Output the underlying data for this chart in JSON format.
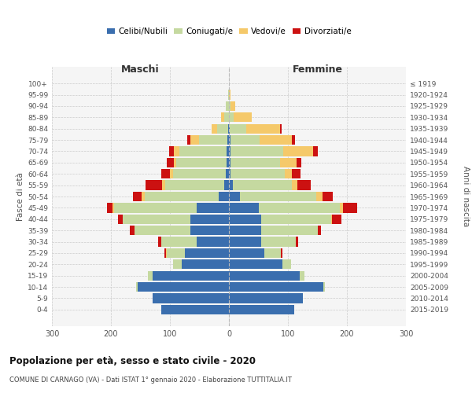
{
  "age_groups_bottom_to_top": [
    "0-4",
    "5-9",
    "10-14",
    "15-19",
    "20-24",
    "25-29",
    "30-34",
    "35-39",
    "40-44",
    "45-49",
    "50-54",
    "55-59",
    "60-64",
    "65-69",
    "70-74",
    "75-79",
    "80-84",
    "85-89",
    "90-94",
    "95-99",
    "100+"
  ],
  "birth_years_bottom_to_top": [
    "2015-2019",
    "2010-2014",
    "2005-2009",
    "2000-2004",
    "1995-1999",
    "1990-1994",
    "1985-1989",
    "1980-1984",
    "1975-1979",
    "1970-1974",
    "1965-1969",
    "1960-1964",
    "1955-1959",
    "1950-1954",
    "1945-1949",
    "1940-1944",
    "1935-1939",
    "1930-1934",
    "1925-1929",
    "1920-1924",
    "≤ 1919"
  ],
  "maschi_celibi": [
    115,
    130,
    155,
    130,
    80,
    75,
    55,
    65,
    65,
    55,
    18,
    8,
    5,
    4,
    4,
    3,
    2,
    0,
    0,
    0,
    0
  ],
  "maschi_coniugati": [
    0,
    0,
    2,
    8,
    15,
    30,
    60,
    95,
    115,
    140,
    125,
    100,
    90,
    85,
    80,
    48,
    18,
    8,
    5,
    2,
    0
  ],
  "maschi_vedovi": [
    0,
    0,
    0,
    0,
    0,
    2,
    0,
    0,
    0,
    2,
    5,
    5,
    5,
    5,
    10,
    15,
    10,
    5,
    0,
    0,
    0
  ],
  "maschi_divorziati": [
    0,
    0,
    0,
    0,
    0,
    2,
    5,
    8,
    8,
    10,
    15,
    28,
    15,
    12,
    8,
    5,
    0,
    0,
    0,
    0,
    0
  ],
  "femmine_nubili": [
    110,
    125,
    160,
    120,
    90,
    60,
    55,
    55,
    55,
    50,
    18,
    6,
    3,
    2,
    2,
    2,
    1,
    0,
    0,
    0,
    0
  ],
  "femmine_coniugate": [
    0,
    0,
    2,
    8,
    15,
    28,
    58,
    95,
    118,
    138,
    130,
    100,
    92,
    85,
    90,
    50,
    28,
    8,
    3,
    0,
    0
  ],
  "femmine_vedove": [
    0,
    0,
    0,
    0,
    0,
    0,
    0,
    0,
    2,
    5,
    10,
    10,
    12,
    28,
    50,
    55,
    58,
    30,
    8,
    3,
    0
  ],
  "femmine_divorziate": [
    0,
    0,
    0,
    0,
    0,
    2,
    4,
    6,
    16,
    24,
    18,
    22,
    14,
    8,
    8,
    5,
    2,
    0,
    0,
    0,
    0
  ],
  "colors": {
    "celibi": "#3a6eae",
    "coniugati": "#c5d9a0",
    "vedovi": "#f5c96a",
    "divorziati": "#cc1111"
  },
  "xlim": 300,
  "xticks": [
    -300,
    -200,
    -100,
    0,
    100,
    200,
    300
  ],
  "title": "Popolazione per età, sesso e stato civile - 2020",
  "subtitle": "COMUNE DI CARNAGO (VA) - Dati ISTAT 1° gennaio 2020 - Elaborazione TUTTITALIA.IT",
  "ylabel_left": "Fasce di età",
  "ylabel_right": "Anni di nascita",
  "label_maschi": "Maschi",
  "label_femmine": "Femmine",
  "bg_color": "#f5f5f5",
  "grid_color": "#cccccc",
  "bar_height": 0.85
}
